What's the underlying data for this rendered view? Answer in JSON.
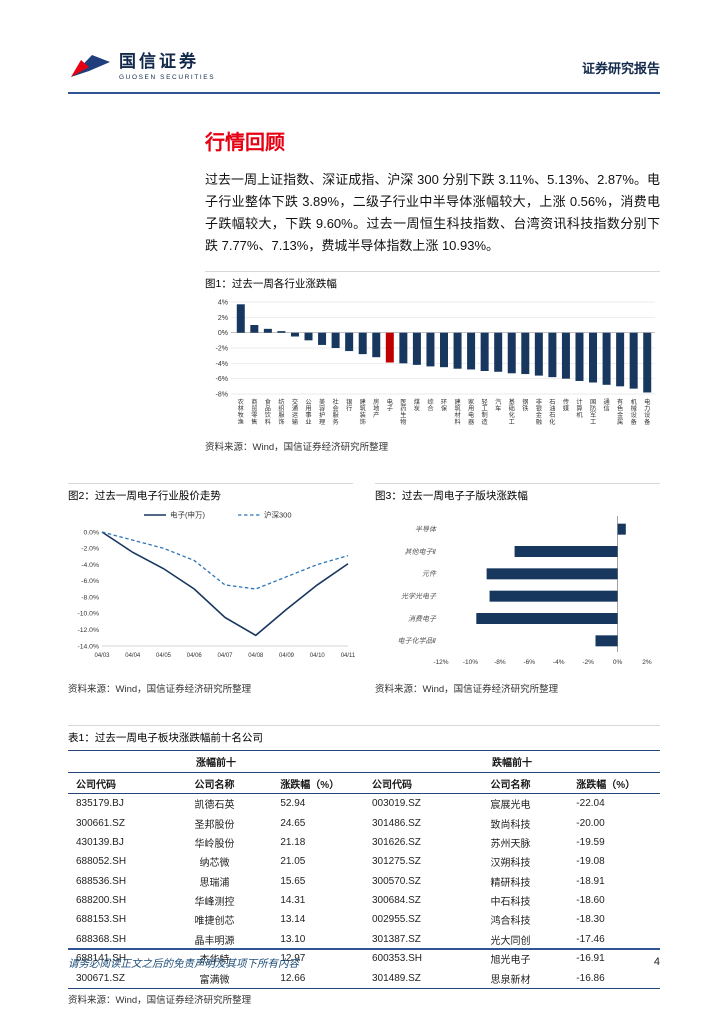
{
  "header": {
    "brand_cn": "国信证券",
    "brand_en": "GUOSEN SECURITIES",
    "report_type": "证券研究报告"
  },
  "section": {
    "title": "行情回顾",
    "paragraph": "过去一周上证指数、深证成指、沪深 300 分别下跌 3.11%、5.13%、2.87%。电子行业整体下跌 3.89%，二级子行业中半导体涨幅较大，上涨 0.56%，消费电子跌幅较大，下跌 9.60%。过去一周恒生科技指数、台湾资讯科技指数分别下跌 7.77%、7.13%，费城半导体指数上涨 10.93%。"
  },
  "figures": {
    "fig1": {
      "caption": "图1：过去一周各行业涨跌幅",
      "source": "资料来源：Wind，国信证券经济研究所整理"
    },
    "fig2": {
      "caption": "图2：过去一周电子行业股价走势",
      "source": "资料来源：Wind，国信证券经济研究所整理"
    },
    "fig3": {
      "caption": "图3：过去一周电子子版块涨跌幅",
      "source": "资料来源：Wind，国信证券经济研究所整理"
    }
  },
  "chart_data": [
    {
      "id": "industry-weekly-change",
      "type": "bar",
      "title": "过去一周各行业涨跌幅",
      "unit": "%",
      "ylim": [
        -8,
        4
      ],
      "yticks": [
        4,
        2,
        0,
        -2,
        -4,
        -6,
        -8
      ],
      "grid": true,
      "bar_color": "#17375E",
      "highlight_color": "#C00000",
      "highlight_category": "电子",
      "categories": [
        "农林牧渔",
        "商贸零售",
        "食品饮料",
        "纺织服饰",
        "交通运输",
        "公用事业",
        "美容护理",
        "社会服务",
        "银行",
        "建筑装饰",
        "房地产",
        "电子",
        "医药生物",
        "煤炭",
        "综合",
        "环保",
        "建筑材料",
        "家用电器",
        "轻工制造",
        "汽车",
        "基础化工",
        "钢铁",
        "非银金融",
        "石油石化",
        "传媒",
        "计算机",
        "国防军工",
        "通信",
        "有色金属",
        "机械设备",
        "电力设备"
      ],
      "values": [
        3.7,
        1.0,
        0.5,
        0.2,
        -0.5,
        -1.0,
        -1.6,
        -2.0,
        -2.4,
        -2.8,
        -3.2,
        -3.89,
        -4.0,
        -4.2,
        -4.4,
        -4.5,
        -4.7,
        -4.8,
        -5.0,
        -5.1,
        -5.3,
        -5.4,
        -5.6,
        -5.8,
        -6.0,
        -6.3,
        -6.5,
        -6.8,
        -7.0,
        -7.3,
        -7.8
      ]
    },
    {
      "id": "electronics-price-trend",
      "type": "line",
      "title": "过去一周电子行业股价走势",
      "x": [
        "04/03",
        "04/04",
        "04/05",
        "04/06",
        "04/07",
        "04/08",
        "04/09",
        "04/10",
        "04/11"
      ],
      "ylim": [
        -14,
        0
      ],
      "yticks": [
        0,
        -2,
        -4,
        -6,
        -8,
        -10,
        -12,
        -14
      ],
      "legend_position": "top",
      "series": [
        {
          "name": "电子(申万)",
          "style": "solid",
          "color": "#17375E",
          "values": [
            0,
            -2.5,
            -4.5,
            -7.0,
            -10.5,
            -12.7,
            -9.5,
            -6.5,
            -3.9
          ]
        },
        {
          "name": "沪深300",
          "style": "dashed",
          "color": "#2E75B6",
          "values": [
            0,
            -1.0,
            -2.0,
            -3.5,
            -6.5,
            -7.0,
            -5.5,
            -4.0,
            -2.9
          ]
        }
      ]
    },
    {
      "id": "electronics-subsector-change",
      "type": "bar-horizontal",
      "title": "过去一周电子子版块涨跌幅",
      "unit": "%",
      "xlim": [
        -12,
        2
      ],
      "xticks": [
        -12,
        -10,
        -8,
        -6,
        -4,
        -2,
        0,
        2
      ],
      "bar_color": "#17375E",
      "categories": [
        "半导体",
        "其他电子Ⅱ",
        "元件",
        "光学光电子",
        "消费电子",
        "电子化学品Ⅱ"
      ],
      "values": [
        0.56,
        -7.0,
        -8.9,
        -8.7,
        -9.6,
        -1.5
      ]
    }
  ],
  "table": {
    "caption": "表1：过去一周电子板块涨跌幅前十名公司",
    "group_headers": [
      "涨幅前十",
      "跌幅前十"
    ],
    "columns": [
      "公司代码",
      "公司名称",
      "涨跌幅（%）",
      "公司代码",
      "公司名称",
      "涨跌幅（%）"
    ],
    "gainers": [
      {
        "code": "835179.BJ",
        "name": "凯德石英",
        "pct": "52.94"
      },
      {
        "code": "300661.SZ",
        "name": "圣邦股份",
        "pct": "24.65"
      },
      {
        "code": "430139.BJ",
        "name": "华岭股份",
        "pct": "21.18"
      },
      {
        "code": "688052.SH",
        "name": "纳芯微",
        "pct": "21.05"
      },
      {
        "code": "688536.SH",
        "name": "思瑞浦",
        "pct": "15.65"
      },
      {
        "code": "688200.SH",
        "name": "华峰测控",
        "pct": "14.31"
      },
      {
        "code": "688153.SH",
        "name": "唯捷创芯",
        "pct": "13.14"
      },
      {
        "code": "688368.SH",
        "name": "晶丰明源",
        "pct": "13.10"
      },
      {
        "code": "688141.SH",
        "name": "杰华特",
        "pct": "12.97"
      },
      {
        "code": "300671.SZ",
        "name": "富满微",
        "pct": "12.66"
      }
    ],
    "losers": [
      {
        "code": "003019.SZ",
        "name": "宸展光电",
        "pct": "-22.04"
      },
      {
        "code": "301486.SZ",
        "name": "致尚科技",
        "pct": "-20.00"
      },
      {
        "code": "301626.SZ",
        "name": "苏州天脉",
        "pct": "-19.59"
      },
      {
        "code": "301275.SZ",
        "name": "汉朔科技",
        "pct": "-19.08"
      },
      {
        "code": "300570.SZ",
        "name": "精研科技",
        "pct": "-18.91"
      },
      {
        "code": "300684.SZ",
        "name": "中石科技",
        "pct": "-18.60"
      },
      {
        "code": "002955.SZ",
        "name": "鸿合科技",
        "pct": "-18.30"
      },
      {
        "code": "301387.SZ",
        "name": "光大同创",
        "pct": "-17.46"
      },
      {
        "code": "600353.SH",
        "name": "旭光电子",
        "pct": "-16.91"
      },
      {
        "code": "301489.SZ",
        "name": "思泉新材",
        "pct": "-16.86"
      }
    ],
    "source": "资料来源：Wind，国信证券经济研究所整理"
  },
  "footer": {
    "disclaimer": "请务必阅读正文之后的免责声明及其项下所有内容",
    "page_number": "4"
  },
  "colors": {
    "accent_navy": "#13294B",
    "rule_blue": "#2F5597",
    "title_red": "#E60012",
    "bar_navy": "#17375E",
    "bar_red": "#C00000",
    "line_blue": "#2E75B6"
  }
}
